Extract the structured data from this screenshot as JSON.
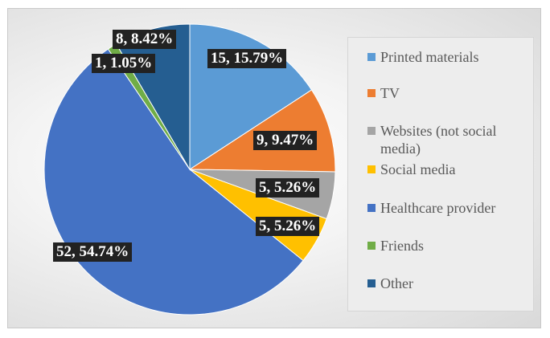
{
  "chart_data": {
    "type": "pie",
    "title": "",
    "legend_position": "right",
    "start_angle_deg": 0,
    "direction": "clockwise",
    "slices": [
      {
        "name": "Printed materials",
        "value": 15,
        "percent": "15.79%",
        "label": "15, 15.79%",
        "color": "#5b9bd5"
      },
      {
        "name": "TV",
        "value": 9,
        "percent": "9.47%",
        "label": "9, 9.47%",
        "color": "#ed7d31"
      },
      {
        "name": "Websites (not social media)",
        "value": 5,
        "percent": "5.26%",
        "label": "5, 5.26%",
        "color": "#a5a5a5"
      },
      {
        "name": "Social media",
        "value": 5,
        "percent": "5.26%",
        "label": "5, 5.26%",
        "color": "#ffc000"
      },
      {
        "name": "Healthcare provider",
        "value": 52,
        "percent": "54.74%",
        "label": "52, 54.74%",
        "color": "#4472c4"
      },
      {
        "name": "Friends",
        "value": 1,
        "percent": "1.05%",
        "label": "1, 1.05%",
        "color": "#70ad47"
      },
      {
        "name": "Other",
        "value": 8,
        "percent": "8.42%",
        "label": "8, 8.42%",
        "color": "#255e91"
      }
    ]
  }
}
